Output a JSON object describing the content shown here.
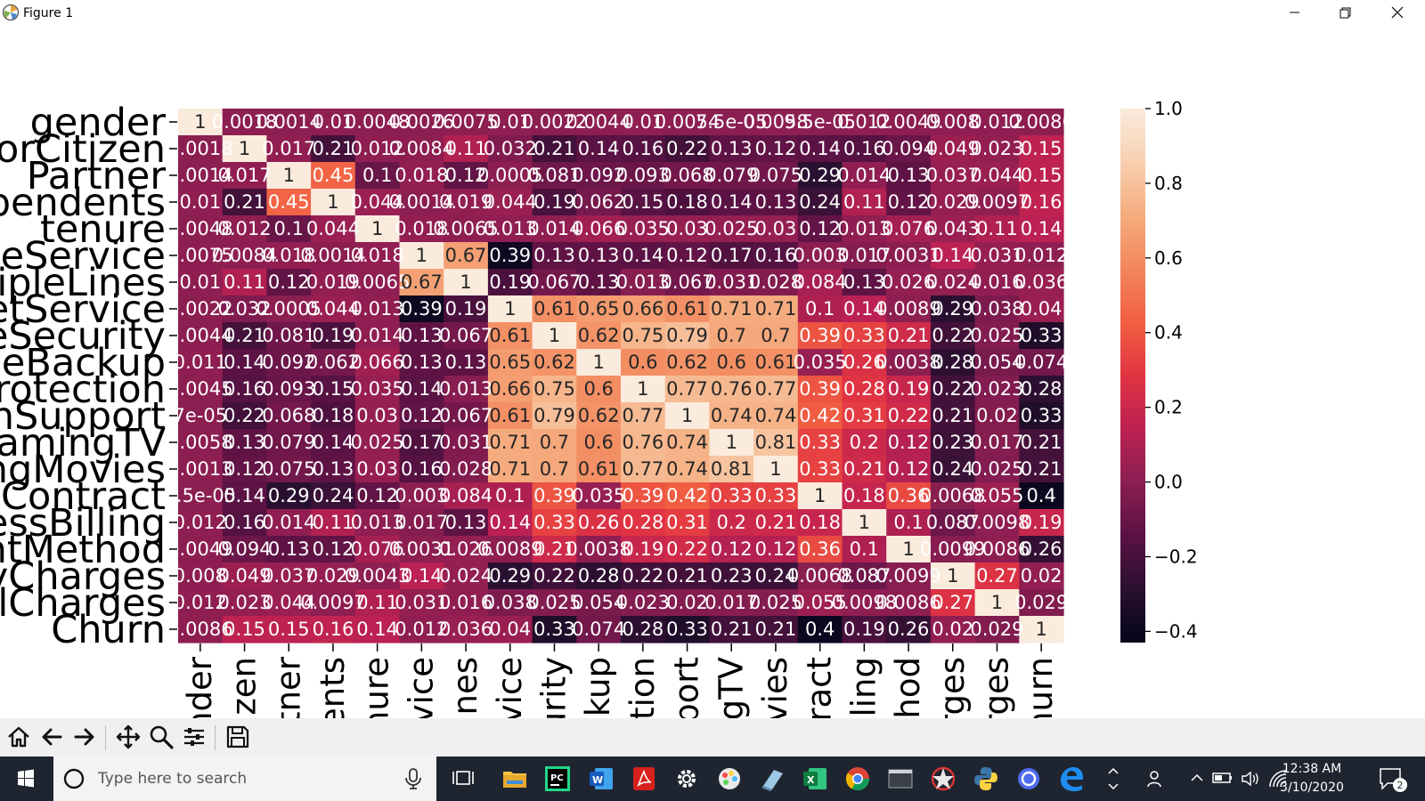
{
  "window": {
    "title": "Figure 1"
  },
  "chart_data": {
    "type": "heatmap",
    "title": "",
    "xlabel": "",
    "ylabel": "",
    "y_tick_labels_visible": [
      "gender",
      "orCitizen",
      "Partner",
      "pendents",
      "tenure",
      "eService",
      "ipleLines",
      "etService",
      "eSecurity",
      "eBackup",
      "rotection",
      "hSupport",
      "amingTV",
      "ngMovies",
      "Contract",
      "essBilling",
      "ntMethod",
      "yCharges",
      "lCharges",
      "Churn"
    ],
    "x_tick_labels_visible": [
      "nder",
      "izen",
      "tner",
      "ents",
      "nure",
      "vice",
      "ines",
      "vice",
      "urity",
      "ckup",
      "tion",
      "port",
      "gTV",
      "vies",
      "ract",
      "lling",
      "thod",
      "rges",
      "rges",
      "hurn"
    ],
    "annotation_text": [
      [
        "1",
        "0.0018",
        "0.0014",
        "0.01",
        "0.0048",
        "0.0026",
        "0.0075",
        "0.01",
        "0.0022",
        "0.0044",
        "0.01",
        "0.0054",
        "7.5e-05",
        "0.0058",
        "9.5e-05",
        "0.012",
        "0.0049",
        "0.008",
        "0.012",
        "0.0086"
      ],
      [
        "0.0018",
        "1",
        "0.017",
        "0.21",
        "0.012",
        "0.0084",
        "0.11",
        "0.032",
        "0.21",
        "0.14",
        "0.16",
        "0.22",
        "0.13",
        "0.12",
        "0.14",
        "0.16",
        "0.094",
        "0.049",
        "0.023",
        "0.15"
      ],
      [
        "0.0014",
        "0.017",
        "1",
        "0.45",
        "0.1",
        "0.018",
        "0.12",
        "0.0005",
        "0.081",
        "0.092",
        "0.093",
        "0.068",
        "0.079",
        "0.075",
        "0.29",
        "0.014",
        "0.13",
        "0.037",
        "0.044",
        "0.15"
      ],
      [
        "0.01",
        "0.21",
        "0.45",
        "1",
        "0.044",
        "0.0014",
        "0.019",
        "0.044",
        "0.19",
        "0.062",
        "0.15",
        "0.18",
        "0.14",
        "0.13",
        "0.24",
        "0.11",
        "0.12",
        "0.029",
        "0.0097",
        "0.16"
      ],
      [
        "0.0048",
        "0.012",
        "0.1",
        "0.044",
        "1",
        "0.018",
        "0.0065",
        "0.013",
        "0.014",
        "0.066",
        "0.035",
        "0.03",
        "0.025",
        "0.03",
        "0.12",
        "0.013",
        "0.076",
        "0.043",
        "0.11",
        "0.14"
      ],
      [
        "0.0075",
        "0.0084",
        "0.018",
        "0.0014",
        "0.018",
        "1",
        "0.67",
        "0.39",
        "0.13",
        "0.13",
        "0.14",
        "0.12",
        "0.17",
        "0.16",
        "0.003",
        "0.017",
        "0.0031",
        "0.14",
        "0.031",
        "0.012"
      ],
      [
        "0.01",
        "0.11",
        "0.12",
        "0.019",
        "0.0065",
        "0.67",
        "1",
        "0.19",
        "0.067",
        "0.13",
        "0.013",
        "0.067",
        "0.031",
        "0.028",
        "0.084",
        "0.13",
        "0.026",
        "0.024",
        "0.016",
        "0.036"
      ],
      [
        "0.0022",
        "0.032",
        "0.0005",
        "0.044",
        "0.013",
        "0.39",
        "0.19",
        "1",
        "0.61",
        "0.65",
        "0.66",
        "0.61",
        "0.71",
        "0.71",
        "0.1",
        "0.14",
        "0.0089",
        "0.29",
        "0.038",
        "0.04"
      ],
      [
        "0.0044",
        "0.21",
        "0.081",
        "0.19",
        "0.014",
        "0.13",
        "0.067",
        "0.61",
        "1",
        "0.62",
        "0.75",
        "0.79",
        "0.7",
        "0.7",
        "0.39",
        "0.33",
        "0.21",
        "0.22",
        "0.025",
        "0.33"
      ],
      [
        "0.011",
        "0.14",
        "0.092",
        "0.062",
        "0.066",
        "0.13",
        "0.13",
        "0.65",
        "0.62",
        "1",
        "0.6",
        "0.62",
        "0.6",
        "0.61",
        "0.035",
        "0.26",
        "0.0038",
        "0.28",
        "0.054",
        "0.074"
      ],
      [
        "0.0045",
        "0.16",
        "0.093",
        "0.15",
        "0.035",
        "0.14",
        "0.013",
        "0.66",
        "0.75",
        "0.6",
        "1",
        "0.77",
        "0.76",
        "0.77",
        "0.39",
        "0.28",
        "0.19",
        "0.22",
        "0.023",
        "0.28"
      ],
      [
        "7e-05",
        "0.22",
        "0.068",
        "0.18",
        "0.03",
        "0.12",
        "0.067",
        "0.61",
        "0.79",
        "0.62",
        "0.77",
        "1",
        "0.74",
        "0.74",
        "0.42",
        "0.31",
        "0.22",
        "0.21",
        "0.02",
        "0.33"
      ],
      [
        "0.0058",
        "0.13",
        "0.079",
        "0.14",
        "0.025",
        "0.17",
        "0.031",
        "0.71",
        "0.7",
        "0.6",
        "0.76",
        "0.74",
        "1",
        "0.81",
        "0.33",
        "0.2",
        "0.12",
        "0.23",
        "0.017",
        "0.21"
      ],
      [
        "0.0013",
        "0.12",
        "0.075",
        "0.13",
        "0.03",
        "0.16",
        "0.028",
        "0.71",
        "0.7",
        "0.61",
        "0.77",
        "0.74",
        "0.81",
        "1",
        "0.33",
        "0.21",
        "0.12",
        "0.24",
        "0.025",
        "0.21"
      ],
      [
        "9.5e-05",
        "0.14",
        "0.29",
        "0.24",
        "0.12",
        "0.003",
        "0.084",
        "0.1",
        "0.39",
        "0.035",
        "0.39",
        "0.42",
        "0.33",
        "0.33",
        "1",
        "0.18",
        "0.36",
        "0.0068",
        "0.055",
        "0.4"
      ],
      [
        "0.012",
        "0.16",
        "0.014",
        "0.11",
        "0.013",
        "0.017",
        "0.13",
        "0.14",
        "0.33",
        "0.26",
        "0.28",
        "0.31",
        "0.2",
        "0.21",
        "0.18",
        "1",
        "0.1",
        "0.087",
        "0.0098",
        "0.19"
      ],
      [
        "0.0049",
        "0.094",
        "0.13",
        "0.12",
        "0.076",
        "0.0031",
        "0.026",
        "0.0089",
        "0.21",
        "0.0038",
        "0.19",
        "0.22",
        "0.12",
        "0.12",
        "0.36",
        "0.1",
        "1",
        "0.0099",
        "0.0086",
        "0.26"
      ],
      [
        "0.008",
        "0.049",
        "0.037",
        "0.029",
        "0.0043",
        "0.14",
        "0.024",
        "0.29",
        "0.22",
        "0.28",
        "0.22",
        "0.21",
        "0.23",
        "0.24",
        "0.0068",
        "0.087",
        "0.0099",
        "1",
        "0.27",
        "0.02"
      ],
      [
        "0.012",
        "0.023",
        "0.044",
        "0.0097",
        "0.11",
        "0.031",
        "0.016",
        "0.038",
        "0.025",
        "0.054",
        "0.023",
        "0.02",
        "0.017",
        "0.025",
        "0.055",
        "0.0098",
        "0.0086",
        "0.27",
        "1",
        "0.029"
      ],
      [
        "0.0086",
        "0.15",
        "0.15",
        "0.16",
        "0.14",
        "0.012",
        "0.036",
        "0.04",
        "0.33",
        "0.074",
        "0.28",
        "0.33",
        "0.21",
        "0.21",
        "0.4",
        "0.19",
        "0.26",
        "0.02",
        "0.029",
        "1"
      ]
    ],
    "values": [
      [
        1,
        0.0018,
        0.0014,
        0.01,
        0.0048,
        0.0026,
        0.0075,
        0.01,
        0.0022,
        0.0044,
        0.01,
        0.0054,
        7.5e-05,
        0.0058,
        9.5e-05,
        0.012,
        0.0049,
        0.008,
        0.012,
        0.0086
      ],
      [
        0.0018,
        1,
        0.017,
        -0.21,
        0.012,
        0.0084,
        0.11,
        -0.032,
        -0.21,
        -0.14,
        -0.16,
        -0.22,
        -0.13,
        -0.12,
        -0.14,
        -0.16,
        -0.094,
        0.049,
        0.023,
        0.15
      ],
      [
        0.0014,
        0.017,
        1,
        0.45,
        -0.1,
        0.018,
        -0.12,
        0.0005,
        -0.081,
        -0.092,
        -0.093,
        -0.068,
        -0.079,
        -0.075,
        -0.29,
        0.014,
        -0.13,
        0.037,
        0.044,
        0.15
      ],
      [
        0.01,
        -0.21,
        0.45,
        1,
        0.044,
        0.0014,
        0.019,
        0.044,
        -0.19,
        -0.062,
        -0.15,
        -0.18,
        -0.14,
        -0.13,
        -0.24,
        0.11,
        -0.12,
        0.029,
        0.0097,
        0.16
      ],
      [
        0.0048,
        0.012,
        -0.1,
        0.044,
        1,
        0.018,
        0.0065,
        0.013,
        0.014,
        0.066,
        0.035,
        0.03,
        0.025,
        0.03,
        -0.12,
        0.013,
        0.076,
        0.043,
        0.11,
        0.14
      ],
      [
        0.0075,
        0.0084,
        0.018,
        0.0014,
        0.018,
        1,
        0.67,
        -0.39,
        -0.13,
        -0.13,
        -0.14,
        -0.12,
        -0.17,
        -0.16,
        0.003,
        -0.017,
        0.0031,
        0.14,
        0.031,
        0.012
      ],
      [
        0.01,
        0.11,
        -0.12,
        0.019,
        0.0065,
        0.67,
        1,
        -0.19,
        -0.067,
        -0.13,
        -0.013,
        -0.067,
        -0.031,
        -0.028,
        0.084,
        -0.13,
        0.026,
        0.024,
        0.016,
        0.036
      ],
      [
        0.0022,
        -0.032,
        0.0005,
        0.044,
        0.013,
        -0.39,
        -0.19,
        1,
        0.61,
        0.65,
        0.66,
        0.61,
        0.71,
        0.71,
        0.1,
        0.14,
        0.0089,
        -0.29,
        -0.038,
        0.04
      ],
      [
        0.0044,
        -0.21,
        -0.081,
        -0.19,
        0.014,
        -0.13,
        -0.067,
        0.61,
        1,
        0.62,
        0.75,
        0.79,
        0.7,
        0.7,
        0.39,
        0.33,
        0.21,
        -0.22,
        -0.025,
        -0.33
      ],
      [
        0.011,
        -0.14,
        -0.092,
        -0.062,
        0.066,
        -0.13,
        -0.13,
        0.65,
        0.62,
        1,
        0.6,
        0.62,
        0.6,
        0.61,
        0.035,
        0.26,
        0.0038,
        -0.28,
        -0.054,
        -0.074
      ],
      [
        0.0045,
        -0.16,
        -0.093,
        -0.15,
        0.035,
        -0.14,
        -0.013,
        0.66,
        0.75,
        0.6,
        1,
        0.77,
        0.76,
        0.77,
        0.39,
        0.28,
        0.19,
        -0.22,
        -0.023,
        -0.28
      ],
      [
        7e-05,
        -0.22,
        -0.068,
        -0.18,
        0.03,
        -0.12,
        -0.067,
        0.61,
        0.79,
        0.62,
        0.77,
        1,
        0.74,
        0.74,
        0.42,
        0.31,
        0.22,
        -0.21,
        -0.02,
        -0.33
      ],
      [
        0.0058,
        -0.13,
        -0.079,
        -0.14,
        0.025,
        -0.17,
        -0.031,
        0.71,
        0.7,
        0.6,
        0.76,
        0.74,
        1,
        0.81,
        0.33,
        0.2,
        0.12,
        -0.23,
        -0.017,
        -0.21
      ],
      [
        0.0013,
        -0.12,
        -0.075,
        -0.13,
        0.03,
        -0.16,
        -0.028,
        0.71,
        0.7,
        0.61,
        0.77,
        0.74,
        0.81,
        1,
        0.33,
        0.21,
        0.12,
        -0.24,
        -0.025,
        -0.21
      ],
      [
        9.5e-05,
        -0.14,
        -0.29,
        -0.24,
        -0.12,
        0.003,
        0.084,
        0.1,
        0.39,
        0.035,
        0.39,
        0.42,
        0.33,
        0.33,
        1,
        0.18,
        0.36,
        -0.0068,
        0.055,
        -0.4
      ],
      [
        0.012,
        -0.16,
        0.014,
        0.11,
        0.013,
        -0.017,
        -0.13,
        0.14,
        0.33,
        0.26,
        0.28,
        0.31,
        0.2,
        0.21,
        0.18,
        1,
        0.1,
        -0.087,
        0.0098,
        0.19
      ],
      [
        0.0049,
        -0.094,
        -0.13,
        -0.12,
        0.076,
        0.0031,
        0.026,
        0.0089,
        0.21,
        0.0038,
        0.19,
        0.22,
        0.12,
        0.12,
        0.36,
        0.1,
        1,
        -0.0099,
        0.0086,
        -0.26
      ],
      [
        0.008,
        0.049,
        0.037,
        0.029,
        0.0043,
        0.14,
        0.024,
        -0.29,
        -0.22,
        -0.28,
        -0.22,
        -0.21,
        -0.23,
        -0.24,
        -0.0068,
        -0.087,
        -0.0099,
        1,
        0.27,
        0.02
      ],
      [
        0.012,
        0.023,
        0.044,
        0.0097,
        0.11,
        0.031,
        0.016,
        -0.038,
        -0.025,
        -0.054,
        -0.023,
        -0.02,
        -0.017,
        -0.025,
        0.055,
        0.0098,
        0.0086,
        0.27,
        1,
        -0.029
      ],
      [
        0.0086,
        0.15,
        0.15,
        0.16,
        0.14,
        0.012,
        0.036,
        0.04,
        -0.33,
        -0.074,
        -0.28,
        -0.33,
        -0.21,
        -0.21,
        -0.4,
        -0.19,
        -0.26,
        0.02,
        -0.029,
        1
      ]
    ],
    "colorbar": {
      "ticks": [
        "1.0",
        "0.8",
        "0.6",
        "0.4",
        "0.2",
        "0.0",
        "−0.2",
        "−0.4"
      ],
      "tick_values": [
        1.0,
        0.8,
        0.6,
        0.4,
        0.2,
        0.0,
        -0.2,
        -0.4
      ],
      "vmin": -0.43,
      "vmax": 1.0
    },
    "colormap": [
      "#03051a",
      "#2b1030",
      "#5a1244",
      "#8b1e52",
      "#bc2152",
      "#e13442",
      "#f15f42",
      "#f3865c",
      "#f5ac7e",
      "#f8d0b0",
      "#faebdd"
    ]
  },
  "toolbar": {
    "icons": [
      "home-icon",
      "back-arrow-icon",
      "forward-arrow-icon",
      "pan-icon",
      "zoom-icon",
      "configure-subplots-icon",
      "save-icon"
    ]
  },
  "taskbar": {
    "search_placeholder": "Type here to search",
    "apps": [
      "task-view-icon",
      "file-explorer-icon",
      "pycharm-icon",
      "word-icon",
      "acrobat-icon",
      "settings-icon",
      "paint-icon",
      "notepad-icon",
      "excel-icon",
      "chrome-icon",
      "terminal-icon",
      "app-icon",
      "python-icon",
      "cortana-icon",
      "edge-icon"
    ],
    "time": "12:38 AM",
    "date": "3/10/2020",
    "notification_count": "2"
  }
}
